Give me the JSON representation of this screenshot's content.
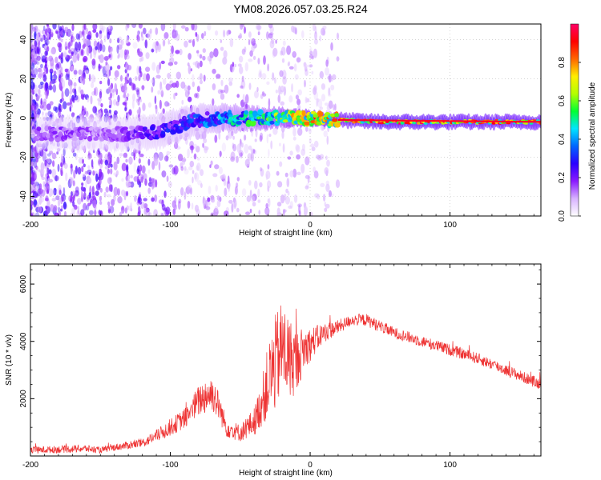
{
  "chart_data": [
    {
      "type": "heatmap",
      "name": "spectrogram",
      "title": "YM08.2026.057.03.25.R24",
      "xlabel": "Height of straight line (km)",
      "ylabel": "Frequency (Hz)",
      "xlim": [
        -200,
        165
      ],
      "ylim": [
        -50,
        48
      ],
      "xticks": [
        -200,
        -100,
        0,
        100
      ],
      "xtick_labels": [
        "-200",
        "-100",
        "0",
        "100"
      ],
      "yticks": [
        -40,
        -20,
        0,
        20,
        40
      ],
      "ytick_labels": [
        "-40",
        "-20",
        "0",
        "20",
        "40"
      ],
      "grid": true,
      "ridge": {
        "x": [
          -155,
          -130,
          -110,
          -100,
          -80,
          -60,
          -40,
          -20,
          0,
          20,
          50,
          80,
          110,
          165
        ],
        "center_hz": [
          -8,
          -8,
          -7,
          -5,
          -1,
          0,
          0,
          0,
          0,
          -1,
          -2,
          -2,
          -2,
          -2
        ],
        "peak_amplitude": [
          0.15,
          0.22,
          0.3,
          0.33,
          0.38,
          0.5,
          0.6,
          0.75,
          0.9,
          0.9,
          1.0,
          1.0,
          0.95,
          0.95
        ]
      },
      "colorbar": {
        "label": "Normalized spectral amplitude",
        "range": [
          0.0,
          1.0
        ],
        "ticks": [
          0.0,
          0.2,
          0.4,
          0.6,
          0.8
        ],
        "tick_labels": [
          "0.0",
          "0.2",
          "0.4",
          "0.6",
          "0.8"
        ],
        "stops": [
          "#ffffff",
          "#d8b3ff",
          "#8a1aff",
          "#2a00ff",
          "#0066ff",
          "#00e5ff",
          "#00ff33",
          "#b3ff00",
          "#ffee00",
          "#ff6600",
          "#ff0000",
          "#ff0066"
        ]
      }
    },
    {
      "type": "line",
      "name": "snr",
      "xlabel": "Height of straight line (km)",
      "ylabel": "SNR (10 * v/v)",
      "xlim": [
        -200,
        165
      ],
      "ylim": [
        0,
        6700
      ],
      "xticks": [
        -200,
        -100,
        0,
        100
      ],
      "xtick_labels": [
        "-200",
        "-100",
        "0",
        "100"
      ],
      "yticks": [
        2000,
        4000,
        6000
      ],
      "ytick_labels": [
        "2000",
        "4000",
        "6000"
      ],
      "series": [
        {
          "name": "SNR",
          "color": "#ee3333",
          "envelope": {
            "x": [
              -200,
              -180,
              -160,
              -150,
              -140,
              -120,
              -110,
              -100,
              -90,
              -85,
              -80,
              -75,
              -70,
              -65,
              -60,
              -50,
              -40,
              -35,
              -30,
              -25,
              -20,
              -15,
              -10,
              -5,
              0,
              10,
              20,
              30,
              40,
              60,
              80,
              100,
              120,
              140,
              165
            ],
            "mean": [
              200,
              230,
              260,
              200,
              300,
              450,
              700,
              1000,
              1300,
              1600,
              1900,
              2100,
              2200,
              1700,
              1000,
              800,
              1200,
              1800,
              2600,
              3200,
              3800,
              3400,
              3300,
              3700,
              3900,
              4300,
              4500,
              4750,
              4750,
              4300,
              4000,
              3700,
              3400,
              3000,
              2500
            ],
            "noise": [
              120,
              130,
              130,
              110,
              120,
              160,
              220,
              300,
              350,
              450,
              550,
              650,
              650,
              500,
              350,
              300,
              500,
              800,
              1300,
              1700,
              1700,
              1500,
              1100,
              800,
              600,
              350,
              250,
              200,
              220,
              200,
              200,
              200,
              200,
              200,
              200
            ]
          }
        }
      ]
    }
  ]
}
